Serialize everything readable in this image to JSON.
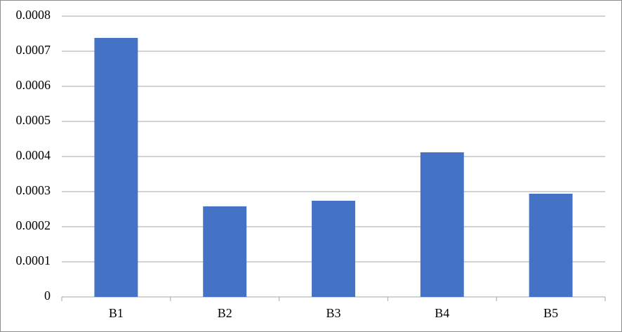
{
  "chart_data": {
    "type": "bar",
    "categories": [
      "B1",
      "B2",
      "B3",
      "B4",
      "B5"
    ],
    "values": [
      0.000738,
      0.000258,
      0.000274,
      0.000412,
      0.000294
    ],
    "color": "#4472c4",
    "ylim": [
      0,
      0.0008
    ],
    "yticks": [
      0,
      0.0001,
      0.0002,
      0.0003,
      0.0004,
      0.0005,
      0.0006,
      0.0007,
      0.0008
    ],
    "grid": true
  }
}
